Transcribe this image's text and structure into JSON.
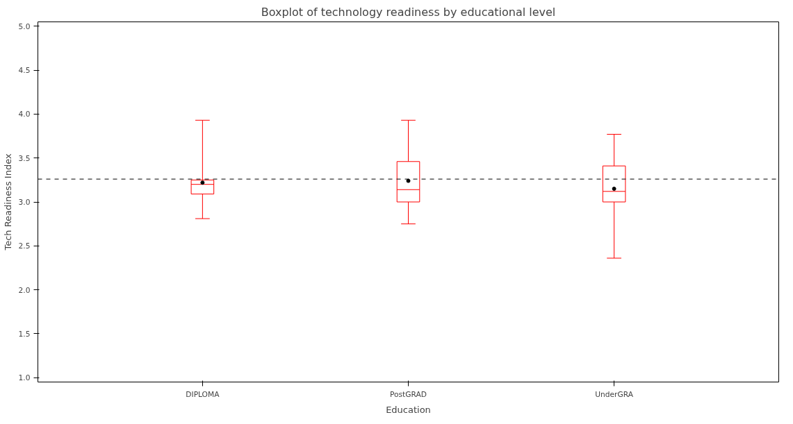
{
  "chart_data": {
    "type": "box",
    "title": "Boxplot of technology readiness by educational level",
    "xlabel": "Education",
    "ylabel": "Tech Readiness Index",
    "categories": [
      "DIPLOMA",
      "PostGRAD",
      "UnderGRA"
    ],
    "series": [
      {
        "color": "#ff0000",
        "boxes": [
          {
            "low": 2.81,
            "q1": 3.09,
            "median": 3.2,
            "q3": 3.25,
            "high": 3.93,
            "mean": 3.22
          },
          {
            "low": 2.75,
            "q1": 3.0,
            "median": 3.14,
            "q3": 3.46,
            "high": 3.93,
            "mean": 3.24
          },
          {
            "low": 2.36,
            "q1": 3.0,
            "median": 3.12,
            "q3": 3.41,
            "high": 3.77,
            "mean": 3.15
          }
        ]
      }
    ],
    "ylim": [
      0.95,
      5.05
    ],
    "yticks": [
      {
        "value": 1,
        "label": "1.0"
      },
      {
        "value": 1.5,
        "label": "1.5"
      },
      {
        "value": 2,
        "label": "2.0"
      },
      {
        "value": 2.5,
        "label": "2.5"
      },
      {
        "value": 3,
        "label": "3.0"
      },
      {
        "value": 3.5,
        "label": "3.5"
      },
      {
        "value": 4,
        "label": "4.0"
      },
      {
        "value": 4.5,
        "label": "4.5"
      },
      {
        "value": 5,
        "label": "5.0"
      }
    ],
    "ref_lines": [
      {
        "axis": "y",
        "value": 3.26,
        "color": "#000000",
        "line_style": "dashed"
      }
    ],
    "grid": false,
    "marker": "circle"
  }
}
